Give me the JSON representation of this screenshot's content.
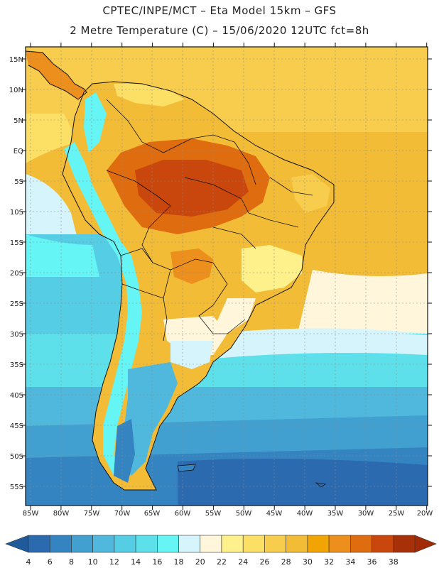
{
  "title": {
    "line1": "CPTEC/INPE/MCT –  Eta Model 15km – GFS",
    "line2": "2 Metre Temperature (C) – 15/06/2020 12UTC fct=8h"
  },
  "axes": {
    "lat_labels": [
      "15N",
      "10N",
      "5N",
      "EQ",
      "5S",
      "10S",
      "15S",
      "20S",
      "25S",
      "30S",
      "35S",
      "40S",
      "45S",
      "50S",
      "55S"
    ],
    "lon_labels": [
      "85W",
      "80W",
      "75W",
      "70W",
      "65W",
      "60W",
      "55W",
      "50W",
      "45W",
      "40W",
      "35W",
      "30W",
      "25W",
      "20W"
    ]
  },
  "colorbar": {
    "labels": [
      "4",
      "6",
      "8",
      "10",
      "12",
      "14",
      "16",
      "18",
      "20",
      "22",
      "24",
      "26",
      "28",
      "30",
      "32",
      "34",
      "36",
      "38"
    ],
    "colors": [
      "#2b6aae",
      "#3584c2",
      "#42a0d0",
      "#4fb8dc",
      "#55cde5",
      "#5ee0ea",
      "#66f5f5",
      "#d6f4fb",
      "#fff6dc",
      "#fef08a",
      "#fce066",
      "#f8cd4d",
      "#f2bc36",
      "#f3a405",
      "#ec8f1d",
      "#e06c10",
      "#c9460c",
      "#a83008"
    ],
    "low_color": "#1f5a9a",
    "high_color": "#a32a06"
  }
}
